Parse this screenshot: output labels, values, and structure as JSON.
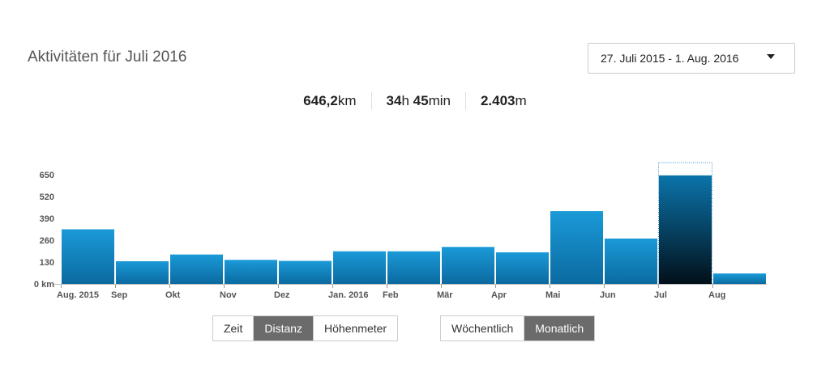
{
  "header": {
    "title": "Aktivitäten für Juli 2016",
    "date_range": "27. Juli 2015 - 1. Aug. 2016"
  },
  "stats": [
    {
      "value": "646,2",
      "unit": "km"
    },
    {
      "value": "34",
      "unit": "h",
      "value2": "45",
      "unit2": "min"
    },
    {
      "value": "2.403",
      "unit": "m"
    }
  ],
  "metric_buttons": [
    {
      "label": "Zeit",
      "active": false
    },
    {
      "label": "Distanz",
      "active": true
    },
    {
      "label": "Höhenmeter",
      "active": false
    }
  ],
  "period_buttons": [
    {
      "label": "Wöchentlich",
      "active": false
    },
    {
      "label": "Monatlich",
      "active": true
    }
  ],
  "colors": {
    "bar_top": "#1a9ad8",
    "bar_bottom": "#0b6aa0",
    "selected_top": "#0b74ab",
    "selected_bottom": "#02101a",
    "active_button": "#6b6b6b"
  },
  "chart_data": {
    "type": "bar",
    "title": "",
    "xlabel": "",
    "ylabel": "",
    "ylim": [
      0,
      650
    ],
    "y_ticks": [
      {
        "value": 0,
        "label": "0 km"
      },
      {
        "value": 130,
        "label": "130"
      },
      {
        "value": 260,
        "label": "260"
      },
      {
        "value": 390,
        "label": "390"
      },
      {
        "value": 520,
        "label": "520"
      },
      {
        "value": 650,
        "label": "650"
      }
    ],
    "x_tick_labels": [
      "Aug. 2015",
      "Sep",
      "Okt",
      "Nov",
      "Dez",
      "Jan. 2016",
      "Feb",
      "Mär",
      "Apr",
      "Mai",
      "Jun",
      "Jul",
      "Aug"
    ],
    "categories": [
      "Aug. 2015",
      "Sep",
      "Okt",
      "Nov",
      "Dez",
      "Jan. 2016",
      "Feb",
      "Mär",
      "Apr",
      "Mai",
      "Jun",
      "Jul",
      "Aug"
    ],
    "values": [
      325,
      135,
      175,
      143,
      137,
      194,
      194,
      220,
      188,
      433,
      270,
      646,
      62
    ],
    "selected": "Jul",
    "grid": false
  }
}
